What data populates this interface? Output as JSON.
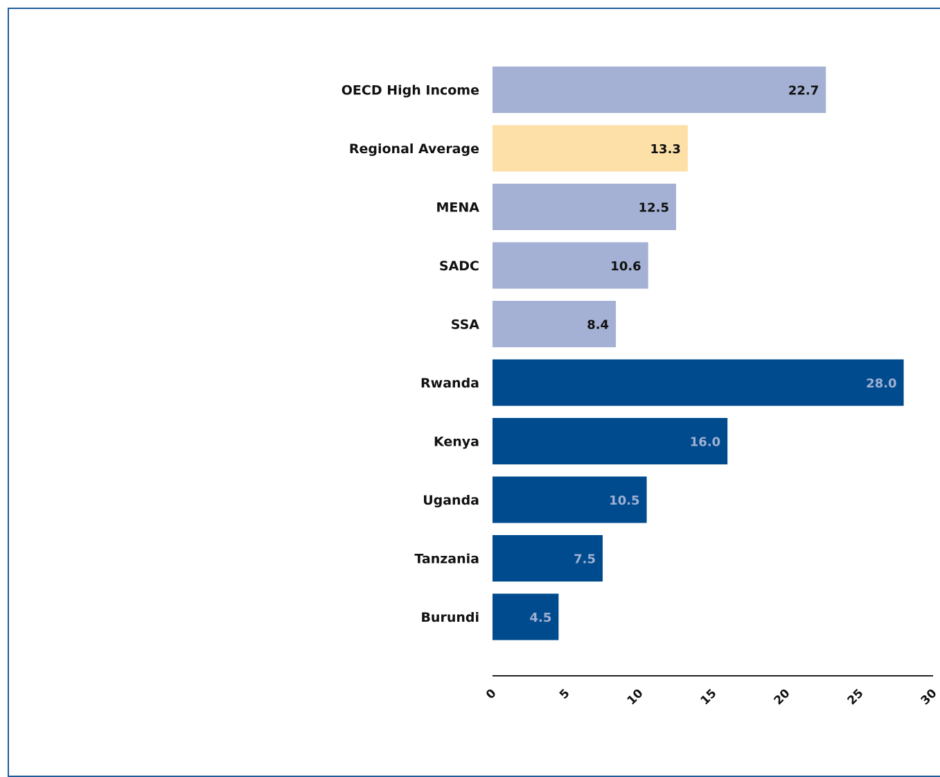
{
  "chart_data": {
    "type": "bar",
    "orientation": "horizontal",
    "title": "",
    "xlabel": "",
    "ylabel": "",
    "xlim": [
      0,
      30
    ],
    "ticks": [
      "0",
      "5",
      "10",
      "15",
      "20",
      "25",
      "30"
    ],
    "grid": false,
    "categories": [
      "OECD High Income",
      "Regional Average",
      "MENA",
      "SADC",
      "SSA",
      "Rwanda",
      "Kenya",
      "Uganda",
      "Tanzania",
      "Burundi"
    ],
    "values": [
      22.7,
      13.3,
      12.5,
      10.6,
      8.4,
      28.0,
      16.0,
      10.5,
      7.5,
      4.5
    ],
    "value_labels": [
      "22.7",
      "13.3",
      "12.5",
      "10.6",
      "8.4",
      "28.0",
      "16.0",
      "10.5",
      "7.5",
      "4.5"
    ],
    "bar_colors": [
      "#a4b1d4",
      "#fde0a8",
      "#a4b1d4",
      "#a4b1d4",
      "#a4b1d4",
      "#004b8d",
      "#004b8d",
      "#004b8d",
      "#004b8d",
      "#004b8d"
    ],
    "label_colors": [
      "#111111",
      "#111111",
      "#111111",
      "#111111",
      "#111111",
      "#9fb0d4",
      "#9fb0d4",
      "#9fb0d4",
      "#9fb0d4",
      "#9fb0d4"
    ]
  },
  "frame_color": "#1f5a9a"
}
